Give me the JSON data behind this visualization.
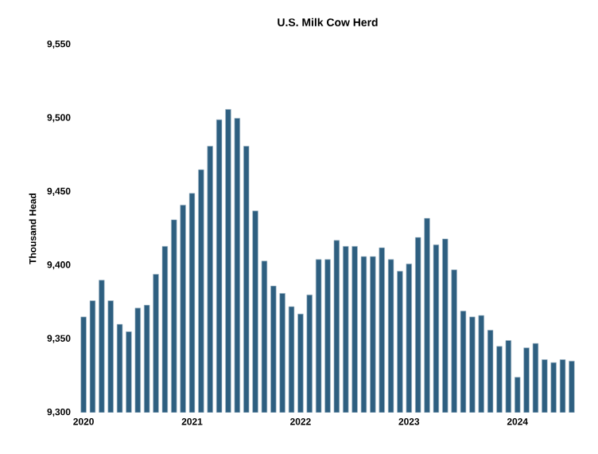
{
  "chart_data": {
    "type": "bar",
    "title": "U.S. Milk Cow Herd",
    "ylabel": "Thousand Head",
    "categories": [
      "2020",
      null,
      null,
      null,
      null,
      null,
      null,
      null,
      null,
      null,
      null,
      null,
      "2021",
      null,
      null,
      null,
      null,
      null,
      null,
      null,
      null,
      null,
      null,
      null,
      "2022",
      null,
      null,
      null,
      null,
      null,
      null,
      null,
      null,
      null,
      null,
      null,
      "2023",
      null,
      null,
      null,
      null,
      null,
      null,
      null,
      null,
      null,
      null,
      null,
      "2024",
      null,
      null,
      null,
      null,
      null,
      null
    ],
    "values": [
      9365,
      9376,
      9390,
      9376,
      9360,
      9355,
      9371,
      9373,
      9394,
      9413,
      9431,
      9441,
      9449,
      9465,
      9481,
      9499,
      9506,
      9500,
      9481,
      9437,
      9403,
      9386,
      9381,
      9372,
      9367,
      9380,
      9404,
      9404,
      9417,
      9413,
      9413,
      9406,
      9406,
      9412,
      9404,
      9396,
      9401,
      9419,
      9432,
      9414,
      9418,
      9397,
      9369,
      9365,
      9366,
      9356,
      9345,
      9349,
      9324,
      9344,
      9347,
      9336,
      9334,
      9336,
      9335
    ],
    "color": "#2e5f80",
    "ylim": [
      9300,
      9550
    ],
    "yticks": [
      {
        "value": 9300,
        "label": "9,300"
      },
      {
        "value": 9350,
        "label": "9,350"
      },
      {
        "value": 9400,
        "label": "9,400"
      },
      {
        "value": 9450,
        "label": "9,450"
      },
      {
        "value": 9500,
        "label": "9,500"
      },
      {
        "value": 9550,
        "label": "9,550"
      }
    ],
    "grid": false
  }
}
